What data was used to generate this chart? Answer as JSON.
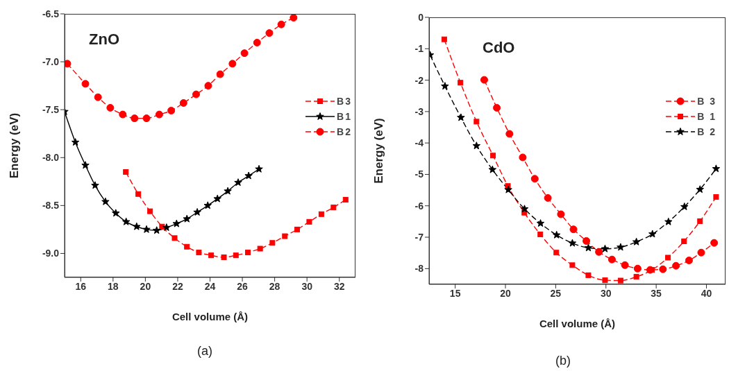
{
  "chart_data": [
    {
      "type": "line",
      "xlabel": "Cell volume (Å)",
      "ylabel": "Energy (eV)",
      "annotations": [
        "ZnO",
        "(a)"
      ],
      "xlim": [
        15,
        33
      ],
      "xticks": [
        16,
        18,
        20,
        22,
        24,
        26,
        28,
        30,
        32
      ],
      "ylim": [
        -9.25,
        -6.5
      ],
      "yticks": [
        -6.5,
        {
          "value": -7,
          "label": "-7.0"
        },
        -7.5,
        {
          "value": -8,
          "label": "-8.0"
        },
        -8.5,
        {
          "value": -9,
          "label": "-9.0"
        }
      ],
      "grid": false,
      "legend": "right",
      "series": [
        {
          "name": "B3",
          "color": "#ff0000",
          "marker": "square",
          "line_style": "dashed",
          "x": [
            18.79,
            19.56,
            20.29,
            21.03,
            21.81,
            22.57,
            23.31,
            24.07,
            24.86,
            25.6,
            26.34,
            27.1,
            27.86,
            28.63,
            29.39,
            30.14,
            30.89,
            31.64,
            32.39
          ],
          "values": [
            -8.15,
            -8.38,
            -8.56,
            -8.72,
            -8.84,
            -8.93,
            -8.99,
            -9.02,
            -9.04,
            -9.02,
            -8.99,
            -8.95,
            -8.89,
            -8.82,
            -8.75,
            -8.67,
            -8.59,
            -8.52,
            -8.44
          ]
        },
        {
          "name": "B1",
          "color": "#000000",
          "marker": "star",
          "line_style": "solid",
          "x": [
            15.0,
            15.67,
            16.29,
            16.89,
            17.53,
            18.17,
            18.81,
            19.46,
            20.07,
            20.7,
            21.31,
            21.93,
            22.57,
            23.21,
            23.86,
            24.46,
            25.1,
            25.74,
            26.39,
            27.03
          ],
          "values": [
            -7.52,
            -7.84,
            -8.08,
            -8.29,
            -8.46,
            -8.58,
            -8.67,
            -8.72,
            -8.75,
            -8.76,
            -8.73,
            -8.69,
            -8.64,
            -8.57,
            -8.5,
            -8.43,
            -8.35,
            -8.26,
            -8.19,
            -8.12
          ]
        },
        {
          "name": "B2",
          "color": "#ff0000",
          "marker": "circle",
          "line_style": "dashed",
          "x": [
            15.17,
            16.29,
            17.07,
            17.83,
            18.6,
            19.33,
            20.07,
            20.86,
            21.6,
            22.36,
            23.14,
            23.89,
            24.63,
            25.39,
            26.13,
            26.91,
            27.67,
            28.41,
            29.17
          ],
          "values": [
            -7.02,
            -7.23,
            -7.37,
            -7.48,
            -7.55,
            -7.59,
            -7.59,
            -7.55,
            -7.51,
            -7.43,
            -7.34,
            -7.25,
            -7.13,
            -7.02,
            -6.91,
            -6.8,
            -6.7,
            -6.61,
            -6.54
          ]
        }
      ]
    },
    {
      "type": "line",
      "xlabel": "Cell volume (Å)",
      "ylabel": "Energy (eV)",
      "annotations": [
        "CdO",
        "(b)"
      ],
      "xlim": [
        12.4,
        41.9
      ],
      "xticks": [
        15,
        20,
        25,
        30,
        35,
        40
      ],
      "ylim": [
        -8.5,
        0
      ],
      "yticks": [
        0,
        -1,
        -2,
        -3,
        -4,
        -5,
        -6,
        -7,
        -8
      ],
      "grid": false,
      "legend": "right",
      "series": [
        {
          "name": "B 3",
          "color": "#ff0000",
          "marker": "circle",
          "line_style": "dashed",
          "x": [
            17.89,
            19.14,
            20.4,
            21.72,
            22.92,
            24.22,
            25.52,
            26.77,
            28.05,
            29.3,
            30.6,
            31.89,
            33.15,
            34.4,
            35.67,
            36.97,
            38.27,
            39.48,
            40.77
          ],
          "values": [
            -1.99,
            -2.88,
            -3.71,
            -4.46,
            -5.14,
            -5.75,
            -6.27,
            -6.75,
            -7.12,
            -7.47,
            -7.71,
            -7.89,
            -8.0,
            -8.04,
            -8.02,
            -7.91,
            -7.74,
            -7.49,
            -7.18
          ]
        },
        {
          "name": "B 1",
          "color": "#ff0000",
          "marker": "square",
          "line_style": "dashed",
          "x": [
            13.91,
            15.52,
            17.12,
            18.76,
            20.24,
            21.88,
            23.47,
            25.06,
            26.66,
            28.25,
            29.91,
            31.46,
            33.03,
            34.58,
            36.17,
            37.77,
            39.36,
            40.96
          ],
          "values": [
            -0.7,
            -2.08,
            -3.32,
            -4.4,
            -5.37,
            -6.22,
            -6.91,
            -7.49,
            -7.89,
            -8.21,
            -8.37,
            -8.38,
            -8.26,
            -8.04,
            -7.65,
            -7.13,
            -6.49,
            -5.72
          ]
        },
        {
          "name": "B 2",
          "color": "#000000",
          "marker": "star",
          "line_style": "dashed",
          "x": [
            12.5,
            13.98,
            15.57,
            17.12,
            18.71,
            20.28,
            21.9,
            23.49,
            25.09,
            26.66,
            28.25,
            29.91,
            31.46,
            33.03,
            34.63,
            36.22,
            37.81,
            39.36,
            40.96
          ],
          "values": [
            -1.2,
            -2.19,
            -3.19,
            -4.09,
            -4.85,
            -5.49,
            -6.1,
            -6.56,
            -6.93,
            -7.19,
            -7.34,
            -7.37,
            -7.32,
            -7.15,
            -6.9,
            -6.51,
            -6.03,
            -5.48,
            -4.82
          ]
        }
      ]
    }
  ]
}
